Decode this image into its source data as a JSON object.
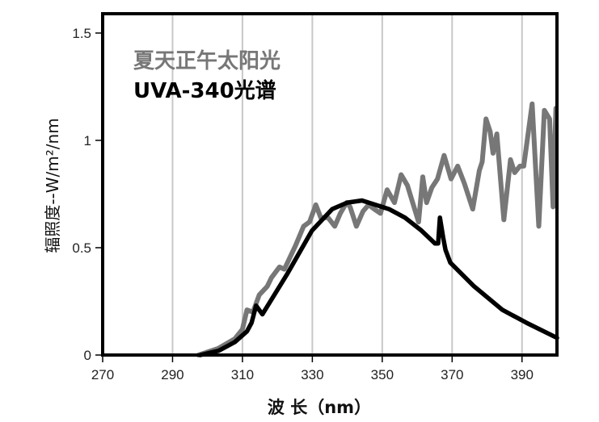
{
  "chart_data": {
    "type": "line",
    "title": "",
    "xlabel": "波 长（nm）",
    "ylabel": "辐照度--W/m²/nm",
    "xlim": [
      270,
      400
    ],
    "ylim": [
      0,
      1.59
    ],
    "grid": "vertical",
    "legend_position": "top-left",
    "x_ticks": [
      270,
      290,
      310,
      330,
      350,
      370,
      390
    ],
    "x_tick_labels": [
      "270",
      "290",
      "310",
      "330",
      "350",
      "370",
      "390"
    ],
    "y_ticks": [
      0,
      0.5,
      1,
      1.5
    ],
    "y_tick_labels": [
      "0",
      "0.5",
      "1",
      "1.5"
    ],
    "series": [
      {
        "name": "夏天正午太阳光",
        "color": "#777777",
        "points": [
          [
            297.4,
            0
          ],
          [
            303,
            0.03
          ],
          [
            307.8,
            0.075
          ],
          [
            310,
            0.12
          ],
          [
            311.3,
            0.21
          ],
          [
            313,
            0.2
          ],
          [
            314.8,
            0.28
          ],
          [
            317.1,
            0.32
          ],
          [
            318.3,
            0.36
          ],
          [
            320.6,
            0.41
          ],
          [
            322,
            0.4
          ],
          [
            325.2,
            0.51
          ],
          [
            327.5,
            0.6
          ],
          [
            329.2,
            0.62
          ],
          [
            331,
            0.7
          ],
          [
            332.4,
            0.64
          ],
          [
            334.5,
            0.64
          ],
          [
            336.4,
            0.6
          ],
          [
            338,
            0.66
          ],
          [
            339.8,
            0.71
          ],
          [
            340.8,
            0.69
          ],
          [
            342.6,
            0.6
          ],
          [
            344.5,
            0.67
          ],
          [
            346.1,
            0.7
          ],
          [
            347.7,
            0.68
          ],
          [
            349.5,
            0.66
          ],
          [
            351.4,
            0.77
          ],
          [
            353.5,
            0.71
          ],
          [
            355.4,
            0.84
          ],
          [
            357.2,
            0.79
          ],
          [
            360.4,
            0.62
          ],
          [
            361.6,
            0.83
          ],
          [
            362.7,
            0.71
          ],
          [
            364.2,
            0.78
          ],
          [
            365.8,
            0.82
          ],
          [
            367.7,
            0.93
          ],
          [
            369.7,
            0.82
          ],
          [
            371.6,
            0.88
          ],
          [
            373.5,
            0.8
          ],
          [
            375.9,
            0.68
          ],
          [
            377.8,
            0.86
          ],
          [
            378.6,
            0.9
          ],
          [
            379.7,
            1.1
          ],
          [
            380.9,
            1.04
          ],
          [
            381.7,
            0.94
          ],
          [
            382.8,
            1.03
          ],
          [
            384.8,
            0.63
          ],
          [
            386.7,
            0.91
          ],
          [
            387.9,
            0.85
          ],
          [
            389.4,
            0.88
          ],
          [
            390.5,
            0.88
          ],
          [
            392.9,
            1.17
          ],
          [
            394.8,
            0.6
          ],
          [
            396.4,
            1.14
          ],
          [
            397.9,
            1.1
          ],
          [
            398.9,
            0.69
          ],
          [
            399.7,
            1.15
          ]
        ]
      },
      {
        "name": "UVA-340光谱",
        "color": "#000000",
        "points": [
          [
            298,
            0
          ],
          [
            303.2,
            0.02
          ],
          [
            307.8,
            0.06
          ],
          [
            311.3,
            0.11
          ],
          [
            312.6,
            0.15
          ],
          [
            313.9,
            0.23
          ],
          [
            315.7,
            0.19
          ],
          [
            322.9,
            0.38
          ],
          [
            329.9,
            0.58
          ],
          [
            335.7,
            0.68
          ],
          [
            340,
            0.71
          ],
          [
            344.2,
            0.72
          ],
          [
            351.9,
            0.68
          ],
          [
            356.5,
            0.64
          ],
          [
            361.2,
            0.58
          ],
          [
            365.1,
            0.52
          ],
          [
            366,
            0.52
          ],
          [
            366.5,
            0.64
          ],
          [
            367.4,
            0.55
          ],
          [
            368.1,
            0.49
          ],
          [
            369.5,
            0.43
          ],
          [
            376.3,
            0.32
          ],
          [
            384.4,
            0.21
          ],
          [
            391.3,
            0.15
          ],
          [
            400,
            0.08
          ]
        ]
      }
    ]
  }
}
